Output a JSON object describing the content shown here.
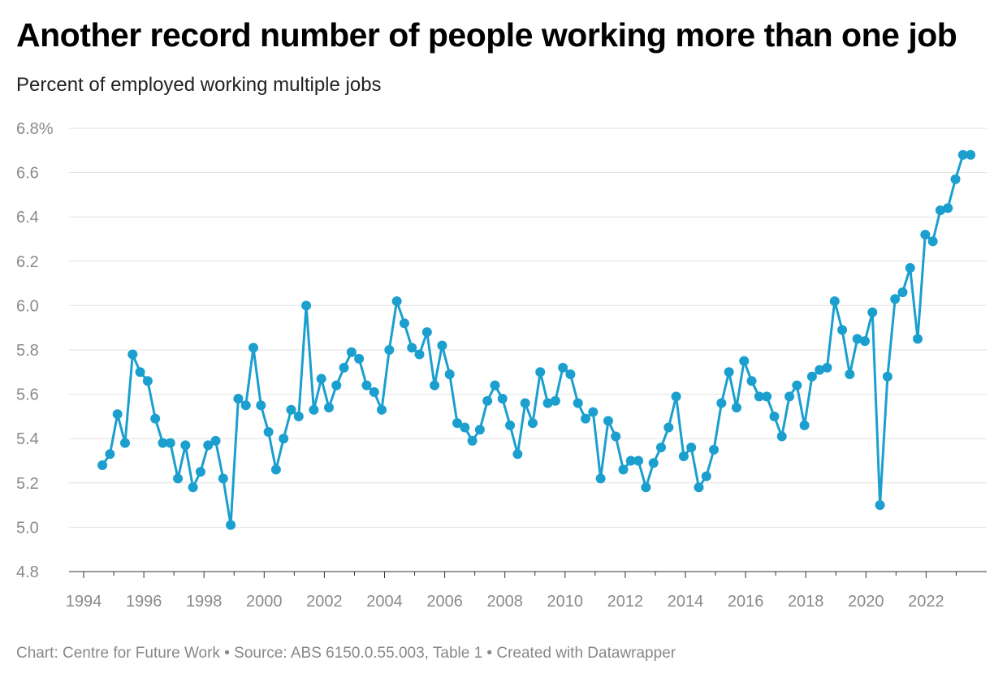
{
  "chart_data": {
    "type": "line",
    "title": "Another record number of people working more than one job",
    "subtitle": "Percent of employed working multiple jobs",
    "xlabel": "",
    "ylabel": "",
    "ylim": [
      4.8,
      6.8
    ],
    "xlim": [
      1994,
      2023.8
    ],
    "yticks": [
      "4.8",
      "5.0",
      "5.2",
      "5.4",
      "5.6",
      "5.8",
      "6.0",
      "6.2",
      "6.4",
      "6.6",
      "6.8%"
    ],
    "ytick_values": [
      4.8,
      5.0,
      5.2,
      5.4,
      5.6,
      5.8,
      6.0,
      6.2,
      6.4,
      6.6,
      6.8
    ],
    "xticks": [
      "1994",
      "1996",
      "1998",
      "2000",
      "2002",
      "2004",
      "2006",
      "2008",
      "2010",
      "2012",
      "2014",
      "2016",
      "2018",
      "2020",
      "2022"
    ],
    "grid": true,
    "legend": "none",
    "color": "#1a9fcf",
    "series": [
      {
        "x_start": "1994 Q3",
        "frequency": "quarterly",
        "values": [
          5.28,
          5.33,
          5.51,
          5.38,
          5.78,
          5.7,
          5.66,
          5.49,
          5.38,
          5.38,
          5.22,
          5.37,
          5.18,
          5.25,
          5.37,
          5.39,
          5.22,
          5.01,
          5.58,
          5.55,
          5.81,
          5.55,
          5.43,
          5.26,
          5.4,
          5.53,
          5.5,
          6.0,
          5.53,
          5.67,
          5.54,
          5.64,
          5.72,
          5.79,
          5.76,
          5.64,
          5.61,
          5.53,
          5.8,
          6.02,
          5.92,
          5.81,
          5.78,
          5.88,
          5.64,
          5.82,
          5.69,
          5.47,
          5.45,
          5.39,
          5.44,
          5.57,
          5.64,
          5.58,
          5.46,
          5.33,
          5.56,
          5.47,
          5.7,
          5.56,
          5.57,
          5.72,
          5.69,
          5.56,
          5.49,
          5.52,
          5.22,
          5.48,
          5.41,
          5.26,
          5.3,
          5.3,
          5.18,
          5.29,
          5.36,
          5.45,
          5.59,
          5.32,
          5.36,
          5.18,
          5.23,
          5.35,
          5.56,
          5.7,
          5.54,
          5.75,
          5.66,
          5.59,
          5.59,
          5.5,
          5.41,
          5.59,
          5.64,
          5.46,
          5.68,
          5.71,
          5.72,
          6.02,
          5.89,
          5.69,
          5.85,
          5.84,
          5.97,
          5.1,
          5.68,
          6.03,
          6.06,
          6.17,
          5.85,
          6.32,
          6.29,
          6.43,
          6.44,
          6.57,
          6.68,
          6.68
        ]
      }
    ]
  },
  "footer": "Chart: Centre for Future Work  • Source: ABS 6150.0.55.003, Table 1 • Created with Datawrapper"
}
